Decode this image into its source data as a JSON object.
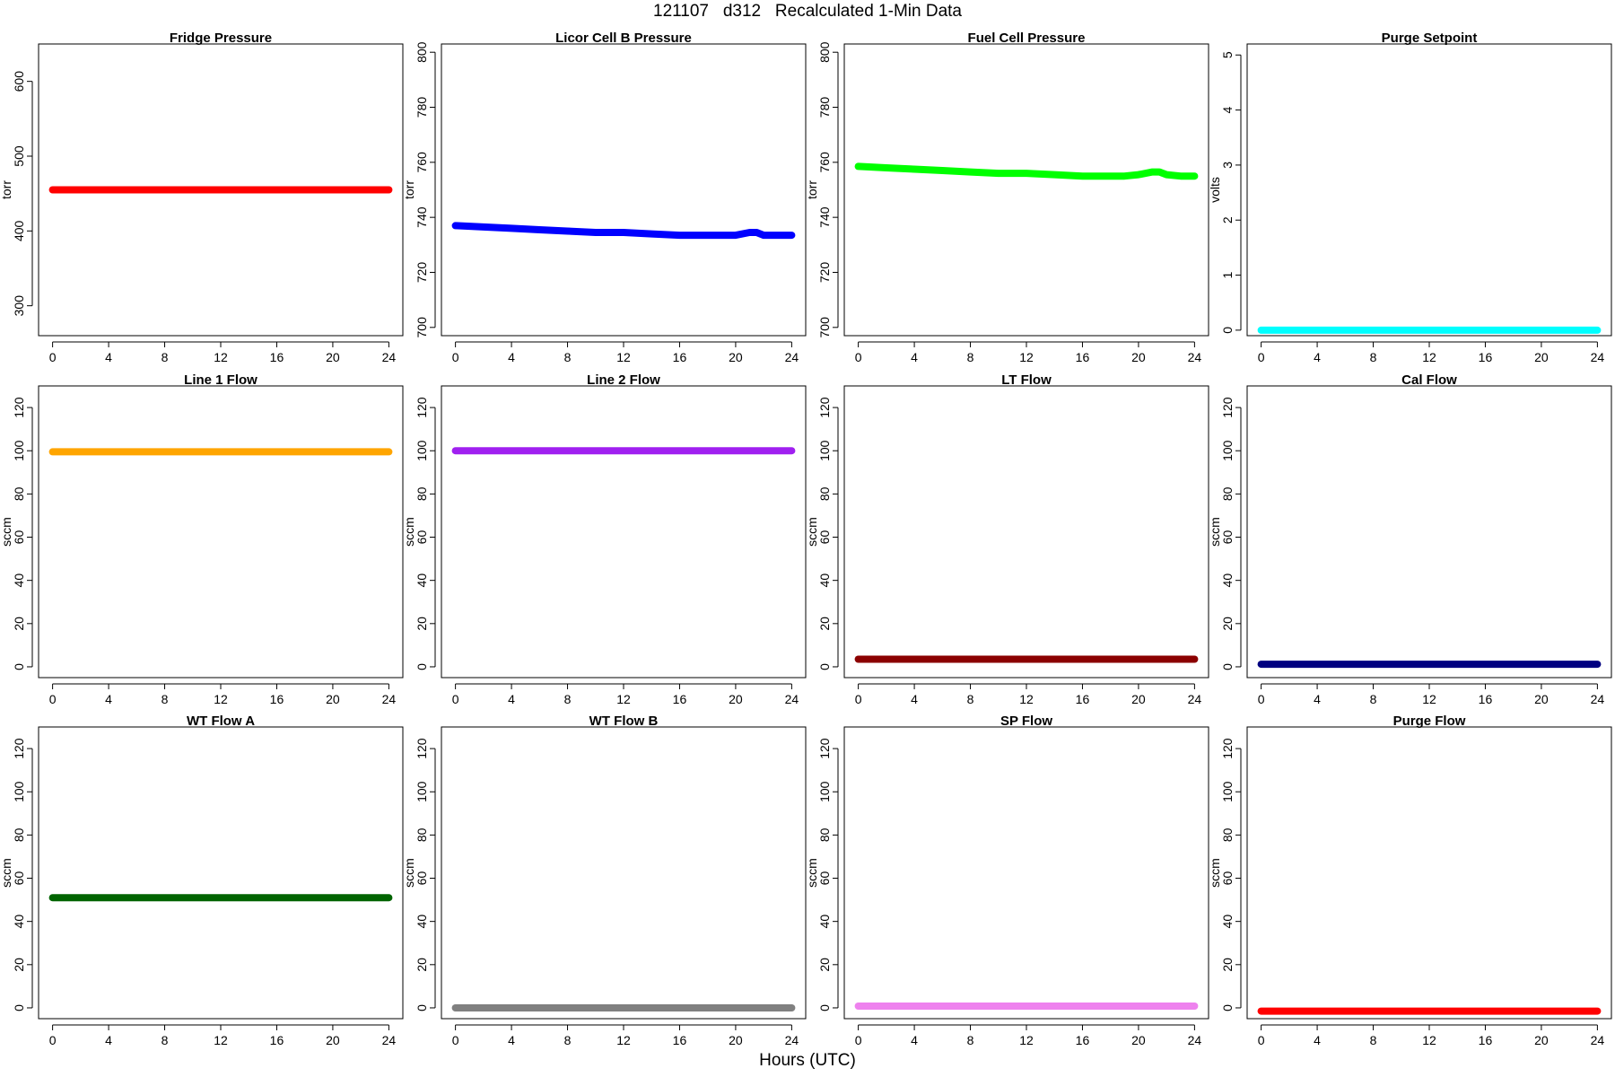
{
  "page": {
    "title": "121107   d312   Recalculated 1-Min Data",
    "xlabel": "Hours (UTC)"
  },
  "chart_data": [
    {
      "type": "scatter",
      "title": "Fridge Pressure",
      "ylabel": "torr",
      "ylim": [
        260,
        650
      ],
      "yticks": [
        300,
        400,
        500,
        600
      ],
      "xlim": [
        -1,
        25
      ],
      "xticks": [
        0,
        4,
        8,
        12,
        16,
        20,
        24
      ],
      "color": "#ff0000",
      "x": [
        0,
        24
      ],
      "y": [
        455,
        455
      ]
    },
    {
      "type": "scatter",
      "title": "Licor Cell B Pressure",
      "ylabel": "torr",
      "ylim": [
        697,
        803
      ],
      "yticks": [
        700,
        720,
        740,
        760,
        780,
        800
      ],
      "xlim": [
        -1,
        25
      ],
      "xticks": [
        0,
        4,
        8,
        12,
        16,
        20,
        24
      ],
      "color": "#0000ff",
      "x": [
        0,
        2,
        4,
        6,
        8,
        10,
        12,
        14,
        16,
        17,
        18,
        19,
        20,
        21,
        21.5,
        22,
        23,
        24
      ],
      "y": [
        737,
        736.5,
        736,
        735.5,
        735,
        734.5,
        734.5,
        734,
        733.5,
        733.5,
        733.5,
        733.5,
        733.5,
        734.5,
        734.5,
        733.5,
        733.5,
        733.5
      ]
    },
    {
      "type": "scatter",
      "title": "Fuel Cell Pressure",
      "ylabel": "torr",
      "ylim": [
        697,
        803
      ],
      "yticks": [
        700,
        720,
        740,
        760,
        780,
        800
      ],
      "xlim": [
        -1,
        25
      ],
      "xticks": [
        0,
        4,
        8,
        12,
        16,
        20,
        24
      ],
      "color": "#00ff00",
      "x": [
        0,
        2,
        4,
        6,
        8,
        10,
        12,
        14,
        16,
        17,
        18,
        19,
        20,
        21,
        21.5,
        22,
        23,
        24
      ],
      "y": [
        758.5,
        758,
        757.5,
        757,
        756.5,
        756,
        756,
        755.5,
        755,
        755,
        755,
        755,
        755.5,
        756.5,
        756.5,
        755.5,
        755,
        755
      ]
    },
    {
      "type": "scatter",
      "title": "Purge Setpoint",
      "ylabel": "volts",
      "ylim": [
        -0.1,
        5.2
      ],
      "yticks": [
        0,
        1,
        2,
        3,
        4,
        5
      ],
      "xlim": [
        -1,
        25
      ],
      "xticks": [
        0,
        4,
        8,
        12,
        16,
        20,
        24
      ],
      "color": "#00ffff",
      "x": [
        0,
        24
      ],
      "y": [
        0,
        0
      ]
    },
    {
      "type": "scatter",
      "title": "Line 1 Flow",
      "ylabel": "sccm",
      "ylim": [
        -5,
        130
      ],
      "yticks": [
        0,
        20,
        40,
        60,
        80,
        100,
        120
      ],
      "xlim": [
        -1,
        25
      ],
      "xticks": [
        0,
        4,
        8,
        12,
        16,
        20,
        24
      ],
      "color": "#ffa500",
      "x": [
        0,
        24
      ],
      "y": [
        99.5,
        99.5
      ]
    },
    {
      "type": "scatter",
      "title": "Line 2 Flow",
      "ylabel": "sccm",
      "ylim": [
        -5,
        130
      ],
      "yticks": [
        0,
        20,
        40,
        60,
        80,
        100,
        120
      ],
      "xlim": [
        -1,
        25
      ],
      "xticks": [
        0,
        4,
        8,
        12,
        16,
        20,
        24
      ],
      "color": "#a020f0",
      "x": [
        0,
        24
      ],
      "y": [
        100,
        100
      ]
    },
    {
      "type": "scatter",
      "title": "LT Flow",
      "ylabel": "sccm",
      "ylim": [
        -5,
        130
      ],
      "yticks": [
        0,
        20,
        40,
        60,
        80,
        100,
        120
      ],
      "xlim": [
        -1,
        25
      ],
      "xticks": [
        0,
        4,
        8,
        12,
        16,
        20,
        24
      ],
      "color": "#8b0000",
      "x": [
        0,
        24
      ],
      "y": [
        3.5,
        3.5
      ]
    },
    {
      "type": "scatter",
      "title": "Cal Flow",
      "ylabel": "sccm",
      "ylim": [
        -5,
        130
      ],
      "yticks": [
        0,
        20,
        40,
        60,
        80,
        100,
        120
      ],
      "xlim": [
        -1,
        25
      ],
      "xticks": [
        0,
        4,
        8,
        12,
        16,
        20,
        24
      ],
      "color": "#000080",
      "x": [
        0,
        24
      ],
      "y": [
        1.2,
        1.2
      ]
    },
    {
      "type": "scatter",
      "title": "WT Flow A",
      "ylabel": "sccm",
      "ylim": [
        -5,
        130
      ],
      "yticks": [
        0,
        20,
        40,
        60,
        80,
        100,
        120
      ],
      "xlim": [
        -1,
        25
      ],
      "xticks": [
        0,
        4,
        8,
        12,
        16,
        20,
        24
      ],
      "color": "#006400",
      "x": [
        0,
        24
      ],
      "y": [
        51,
        51
      ]
    },
    {
      "type": "scatter",
      "title": "WT Flow B",
      "ylabel": "sccm",
      "ylim": [
        -5,
        130
      ],
      "yticks": [
        0,
        20,
        40,
        60,
        80,
        100,
        120
      ],
      "xlim": [
        -1,
        25
      ],
      "xticks": [
        0,
        4,
        8,
        12,
        16,
        20,
        24
      ],
      "color": "#808080",
      "x": [
        0,
        24
      ],
      "y": [
        0,
        0
      ]
    },
    {
      "type": "scatter",
      "title": "SP Flow",
      "ylabel": "sccm",
      "ylim": [
        -5,
        130
      ],
      "yticks": [
        0,
        20,
        40,
        60,
        80,
        100,
        120
      ],
      "xlim": [
        -1,
        25
      ],
      "xticks": [
        0,
        4,
        8,
        12,
        16,
        20,
        24
      ],
      "color": "#ee82ee",
      "x": [
        0,
        24
      ],
      "y": [
        0.8,
        0.8
      ]
    },
    {
      "type": "scatter",
      "title": "Purge Flow",
      "ylabel": "sccm",
      "ylim": [
        -5,
        130
      ],
      "yticks": [
        0,
        20,
        40,
        60,
        80,
        100,
        120
      ],
      "xlim": [
        -1,
        25
      ],
      "xticks": [
        0,
        4,
        8,
        12,
        16,
        20,
        24
      ],
      "color": "#ff0000",
      "x": [
        0,
        24
      ],
      "y": [
        -1.5,
        -1.5
      ]
    }
  ]
}
